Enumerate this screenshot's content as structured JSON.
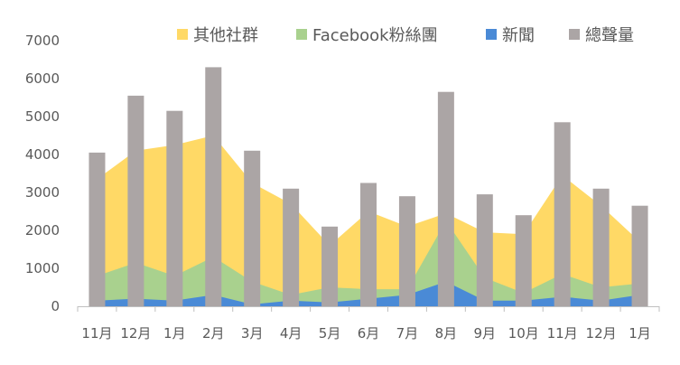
{
  "chart_data": {
    "type": "bar",
    "categories": [
      "11月",
      "12月",
      "1月",
      "2月",
      "3月",
      "4月",
      "5月",
      "6月",
      "7月",
      "8月",
      "9月",
      "10月",
      "11月",
      "12月",
      "1月"
    ],
    "ylim": [
      0,
      7000
    ],
    "yticks": [
      0,
      1000,
      2000,
      3000,
      4000,
      5000,
      6000,
      7000
    ],
    "grid": false,
    "legend_position": "top",
    "legend": [
      "其他社群",
      "Facebook粉絲團",
      "新聞",
      "總聲量"
    ],
    "series": [
      {
        "name": "其他社群",
        "kind": "area",
        "color": "#FFD966",
        "values": [
          3350,
          4100,
          4250,
          4500,
          3250,
          2700,
          1600,
          2500,
          2100,
          2450,
          1950,
          1900,
          3450,
          2650,
          1700
        ]
      },
      {
        "name": "Facebook粉絲團",
        "kind": "area",
        "color": "#A9D18E",
        "values": [
          800,
          1150,
          800,
          1300,
          650,
          300,
          500,
          450,
          450,
          2250,
          750,
          350,
          850,
          500,
          600
        ]
      },
      {
        "name": "新聞",
        "kind": "area",
        "color": "#4A8AD6",
        "values": [
          150,
          200,
          150,
          300,
          50,
          150,
          100,
          200,
          300,
          650,
          150,
          150,
          250,
          150,
          300
        ]
      },
      {
        "name": "總聲量",
        "kind": "bar",
        "color": "#ABA5A5",
        "values": [
          4050,
          5550,
          5150,
          6300,
          4100,
          3100,
          2100,
          3250,
          2900,
          5650,
          2950,
          2400,
          4850,
          3100,
          2650
        ]
      }
    ]
  }
}
